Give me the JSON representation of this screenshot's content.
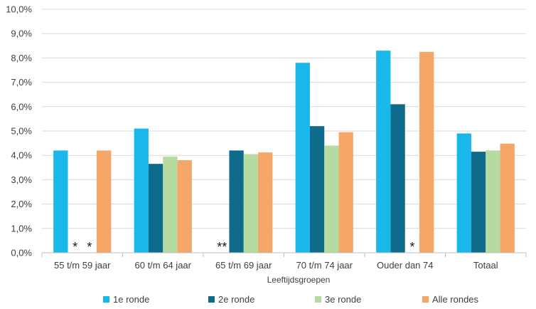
{
  "chart_data": {
    "type": "bar",
    "xlabel": "Leeftijdsgroepen",
    "ylabel": "",
    "ylim": [
      0,
      10
    ],
    "ytick_labels": [
      "0,0%",
      "1,0%",
      "2,0%",
      "3,0%",
      "4,0%",
      "5,0%",
      "6,0%",
      "7,0%",
      "8,0%",
      "9,0%",
      "10,0%"
    ],
    "categories": [
      "55 t/m 59 jaar",
      "60 t/m 64 jaar",
      "65 t/m 69 jaar",
      "70 t/m 74 jaar",
      "Ouder dan 74",
      "Totaal"
    ],
    "series": [
      {
        "name": "1e ronde",
        "color": "#1ab7ea",
        "values": [
          4.2,
          5.1,
          null,
          7.8,
          8.3,
          4.9
        ]
      },
      {
        "name": "2e ronde",
        "color": "#0f6b8c",
        "values": [
          null,
          3.65,
          4.2,
          5.2,
          6.1,
          4.15
        ]
      },
      {
        "name": "3e ronde",
        "color": "#b5dba0",
        "values": [
          null,
          3.95,
          4.05,
          4.4,
          null,
          4.2
        ]
      },
      {
        "name": "Alle rondes",
        "color": "#f6a767",
        "values": [
          4.2,
          3.8,
          4.12,
          4.95,
          8.25,
          4.48
        ]
      }
    ],
    "annotations": [
      {
        "category_index": 0,
        "series_index": 1,
        "text": "*"
      },
      {
        "category_index": 0,
        "series_index": 2,
        "text": "*"
      },
      {
        "category_index": 2,
        "series_index": 0,
        "text": "**"
      },
      {
        "category_index": 4,
        "series_index": 2,
        "text": "*"
      }
    ],
    "grid": true,
    "legend_position": "bottom"
  }
}
